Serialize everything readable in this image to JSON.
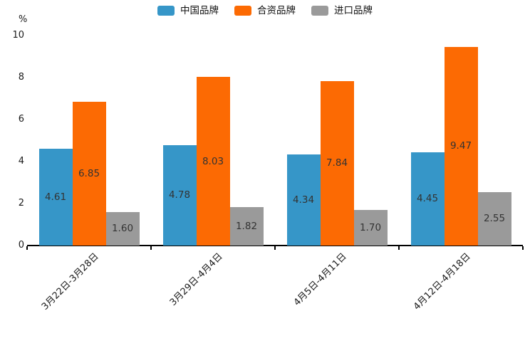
{
  "chart_data": {
    "type": "bar",
    "title": "",
    "y_unit_label": "%",
    "categories": [
      "3月22日-3月28日",
      "3月29日-4月4日",
      "4月5日-4月11日",
      "4月12日-4月18日"
    ],
    "series": [
      {
        "name": "中国品牌",
        "color": "#3696c8",
        "values": [
          4.61,
          4.78,
          4.34,
          4.45
        ]
      },
      {
        "name": "合资品牌",
        "color": "#fc6a03",
        "values": [
          6.85,
          8.03,
          7.84,
          9.47
        ]
      },
      {
        "name": "进口品牌",
        "color": "#9a9a9a",
        "values": [
          1.6,
          1.82,
          1.7,
          2.55
        ]
      }
    ],
    "ylim": [
      0,
      10
    ],
    "yticks": [
      0,
      2,
      4,
      6,
      8,
      10
    ],
    "grid": false,
    "legend_position": "top-center",
    "value_label_decimals": 2,
    "value_label_position": "inside-center",
    "xlabel_rotation_deg": 45,
    "colors": {
      "axis_line": "#000000",
      "tick_text": "#1a1a1a",
      "value_text": "#333333",
      "background": "#ffffff"
    }
  }
}
